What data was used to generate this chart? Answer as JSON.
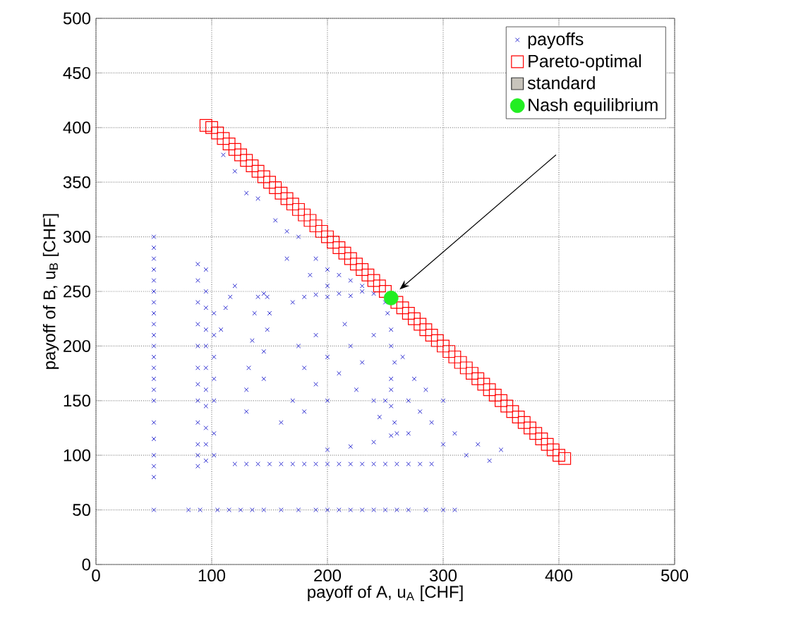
{
  "chart_data": {
    "type": "scatter",
    "xlabel": "payoff of A, u$_{A}$ [CHF]",
    "ylabel": "payoff of B, u$_{B}$ [CHF]",
    "xlim": [
      0,
      500
    ],
    "ylim": [
      0,
      500
    ],
    "xticks": [
      0,
      100,
      200,
      300,
      400,
      500
    ],
    "yticks": [
      0,
      50,
      100,
      150,
      200,
      250,
      300,
      350,
      400,
      450,
      500
    ],
    "grid": true,
    "legend": "top right",
    "series": [
      {
        "name": "payoffs",
        "color": "#2a2ad0",
        "marker": "cross",
        "x": [
          50,
          50,
          50,
          50,
          50,
          50,
          50,
          50,
          50,
          50,
          50,
          50,
          50,
          50,
          50,
          50,
          50,
          50,
          50,
          50,
          50,
          50,
          88,
          88,
          88,
          88,
          88,
          88,
          88,
          88,
          88,
          88,
          88,
          88,
          95,
          95,
          95,
          95,
          95,
          95,
          95,
          95,
          95,
          95,
          95,
          102,
          102,
          102,
          102,
          102,
          102,
          102,
          108,
          112,
          116,
          120,
          80,
          90,
          105,
          115,
          125,
          135,
          145,
          160,
          175,
          190,
          200,
          210,
          220,
          230,
          240,
          250,
          260,
          270,
          285,
          300,
          310,
          120,
          130,
          140,
          150,
          160,
          170,
          180,
          190,
          200,
          210,
          220,
          230,
          240,
          250,
          260,
          270,
          280,
          290,
          200,
          220,
          240,
          255,
          270,
          130,
          130,
          132,
          135,
          137,
          140,
          145,
          148,
          145,
          145,
          148,
          150,
          170,
          180,
          190,
          200,
          210,
          220,
          230,
          240,
          250,
          252,
          255,
          255,
          258,
          255,
          255,
          250,
          255,
          258,
          245,
          160,
          170,
          180,
          190,
          200,
          210,
          220,
          230,
          240,
          175,
          190,
          215,
          225,
          200,
          180,
          240,
          260,
          270,
          280,
          290,
          300,
          310,
          320,
          330,
          340,
          350,
          265,
          275,
          285,
          300,
          110,
          120,
          130,
          140,
          155,
          165,
          175,
          190,
          200,
          210,
          220,
          230,
          165,
          185,
          200
        ],
        "values": [
          50,
          80,
          90,
          100,
          115,
          130,
          150,
          160,
          170,
          180,
          190,
          200,
          210,
          220,
          230,
          240,
          250,
          260,
          270,
          280,
          290,
          300,
          90,
          100,
          110,
          130,
          150,
          165,
          180,
          200,
          220,
          240,
          260,
          275,
          95,
          110,
          125,
          145,
          160,
          180,
          200,
          215,
          235,
          250,
          270,
          100,
          120,
          150,
          170,
          190,
          210,
          230,
          215,
          235,
          245,
          255,
          50,
          50,
          50,
          50,
          50,
          50,
          50,
          50,
          50,
          50,
          50,
          50,
          50,
          50,
          50,
          50,
          50,
          50,
          50,
          50,
          50,
          92,
          92,
          92,
          92,
          92,
          92,
          92,
          92,
          92,
          92,
          92,
          92,
          92,
          92,
          92,
          92,
          92,
          92,
          105,
          108,
          112,
          118,
          120,
          140,
          160,
          180,
          205,
          230,
          245,
          248,
          245,
          170,
          195,
          215,
          230,
          240,
          245,
          247,
          245,
          248,
          246,
          250,
          248,
          240,
          230,
          215,
          200,
          185,
          170,
          160,
          150,
          145,
          130,
          135,
          130,
          150,
          180,
          165,
          190,
          175,
          200,
          185,
          210,
          200,
          210,
          220,
          160,
          150,
          140,
          150,
          120,
          150,
          140,
          130,
          110,
          120,
          100,
          110,
          95,
          105,
          190,
          170,
          160,
          150,
          375,
          360,
          340,
          335,
          315,
          305,
          300,
          280,
          270,
          265,
          260,
          255,
          280,
          265,
          255
        ]
      },
      {
        "name": "Pareto-optimal",
        "color": "#ff0000",
        "marker": "square",
        "x": [
          95,
          100,
          105,
          110,
          115,
          120,
          125,
          130,
          135,
          140,
          145,
          150,
          155,
          160,
          165,
          170,
          175,
          180,
          185,
          190,
          195,
          200,
          205,
          210,
          215,
          220,
          225,
          230,
          235,
          240,
          245,
          250,
          255,
          260,
          265,
          270,
          275,
          280,
          285,
          290,
          295,
          300,
          305,
          310,
          315,
          320,
          325,
          330,
          335,
          340,
          345,
          350,
          355,
          360,
          365,
          370,
          375,
          380,
          385,
          390,
          395,
          400,
          405
        ],
        "values": [
          402,
          400,
          395,
          390,
          385,
          380,
          375,
          370,
          365,
          360,
          355,
          350,
          345,
          340,
          335,
          330,
          325,
          320,
          315,
          310,
          305,
          300,
          295,
          290,
          285,
          280,
          275,
          270,
          265,
          260,
          255,
          250,
          null,
          240,
          235,
          230,
          225,
          220,
          215,
          210,
          205,
          200,
          195,
          190,
          185,
          180,
          175,
          170,
          165,
          160,
          155,
          150,
          145,
          140,
          135,
          130,
          125,
          120,
          115,
          110,
          105,
          100,
          97
        ]
      },
      {
        "name": "standard",
        "color": "#c8c4bc",
        "marker": "square"
      },
      {
        "name": "Nash equilibrium",
        "color": "#22ee22",
        "marker": "circle",
        "x": [
          255
        ],
        "values": [
          244
        ]
      }
    ]
  }
}
